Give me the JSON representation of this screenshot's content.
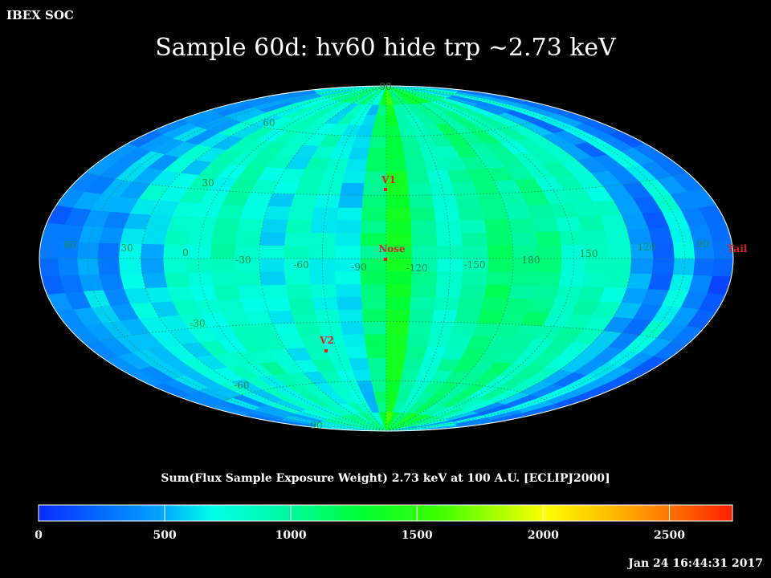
{
  "corner_label": "IBEX SOC",
  "title": "Sample 60d: hv60 hide trp ~2.73 keV",
  "colorbar": {
    "title": "Sum(Flux Sample Exposure Weight)  2.73 keV at 100 A.U. [ECLIPJ2000]",
    "min": 0,
    "max": 2750,
    "ticks": [
      "0",
      "500",
      "1000",
      "1500",
      "2000",
      "2500"
    ],
    "tick_values": [
      0,
      500,
      1000,
      1500,
      2000,
      2500
    ]
  },
  "map": {
    "projection": "Hammer-Aitoff",
    "latitude_labels": [
      "90",
      "60",
      "30",
      "-30",
      "-60",
      "-90"
    ],
    "longitude_labels": [
      "60",
      "30",
      "0",
      "-30",
      "-60",
      "-90",
      "-120",
      "-150",
      "180",
      "150",
      "120",
      "90"
    ],
    "markers": [
      {
        "name": "V1"
      },
      {
        "name": "Nose"
      },
      {
        "name": "V2"
      },
      {
        "name": "Tail"
      }
    ]
  },
  "timestamp": "Jan 24 16:44:31 2017",
  "colors": {
    "background": "#000000",
    "grid_label": "#1a8c4a",
    "marker": "#e02020"
  }
}
